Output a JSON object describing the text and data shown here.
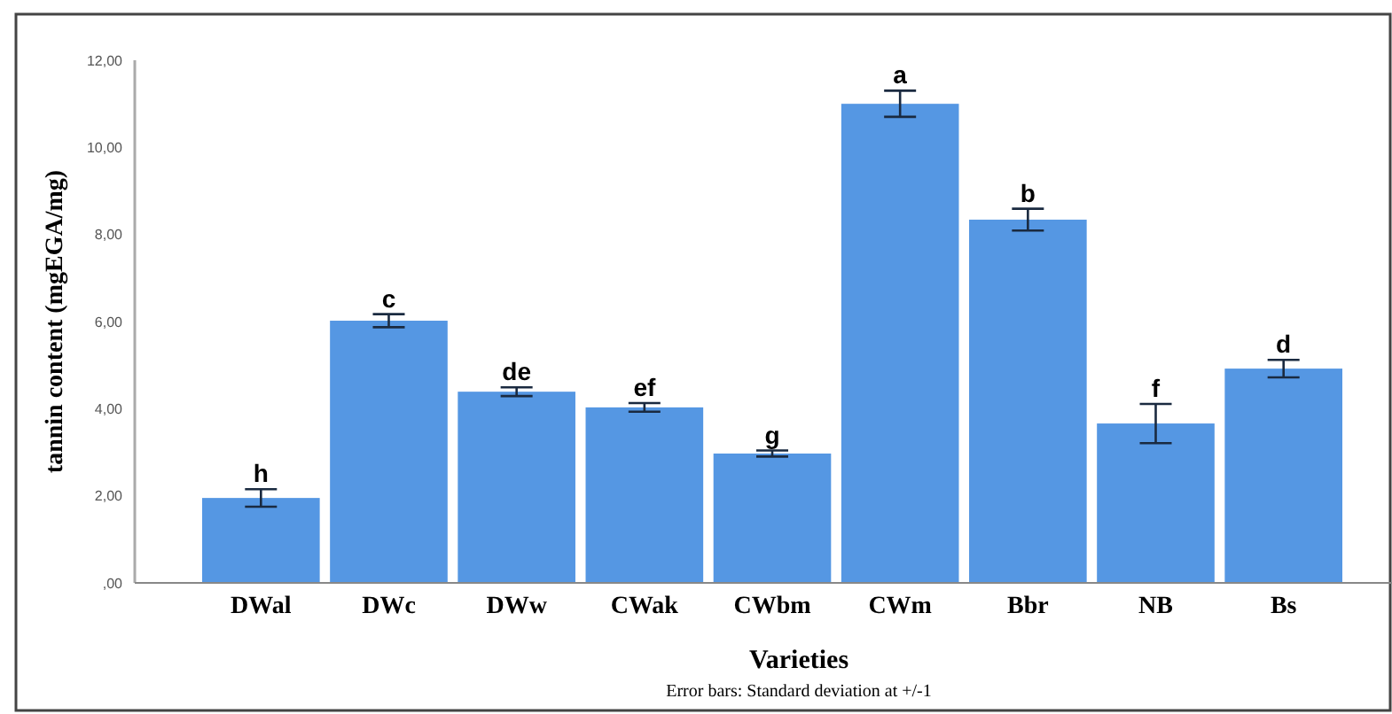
{
  "chart_data": {
    "type": "bar",
    "xlabel": "Varieties",
    "ylabel": "tannin content (mgEGA/mg)",
    "categories": [
      "DWal",
      "DWc",
      "DWw",
      "CWak",
      "CWbm",
      "CWm",
      "Bbr",
      "NB",
      "Bs"
    ],
    "values": [
      1.95,
      6.02,
      4.39,
      4.03,
      2.97,
      11.0,
      8.34,
      3.66,
      4.92
    ],
    "errors": [
      0.2,
      0.15,
      0.1,
      0.1,
      0.07,
      0.3,
      0.25,
      0.45,
      0.2
    ],
    "color": "#5597e3",
    "ylim": [
      0,
      12
    ],
    "yticks": [
      {
        "value": 0,
        "label": ",00"
      },
      {
        "value": 2,
        "label": "2,00"
      },
      {
        "value": 4,
        "label": "4,00"
      },
      {
        "value": 6,
        "label": "6,00"
      },
      {
        "value": 8,
        "label": "8,00"
      },
      {
        "value": 10,
        "label": "10,00"
      },
      {
        "value": 12,
        "label": "12,00"
      }
    ],
    "grid": false,
    "annotations": [
      {
        "text": "h",
        "x": "DWal",
        "y": 2.15
      },
      {
        "text": "c",
        "x": "DWc",
        "y": 6.17
      },
      {
        "text": "de",
        "x": "DWw",
        "y": 4.49
      },
      {
        "text": "ef",
        "x": "CWak",
        "y": 4.13
      },
      {
        "text": "g",
        "x": "CWbm",
        "y": 3.04
      },
      {
        "text": "a",
        "x": "CWm",
        "y": 11.3
      },
      {
        "text": "b",
        "x": "Bbr",
        "y": 8.59
      },
      {
        "text": "f",
        "x": "NB",
        "y": 4.11
      },
      {
        "text": "d",
        "x": "Bs",
        "y": 5.12
      },
      "Error bars: Standard deviation at +/-1"
    ]
  }
}
